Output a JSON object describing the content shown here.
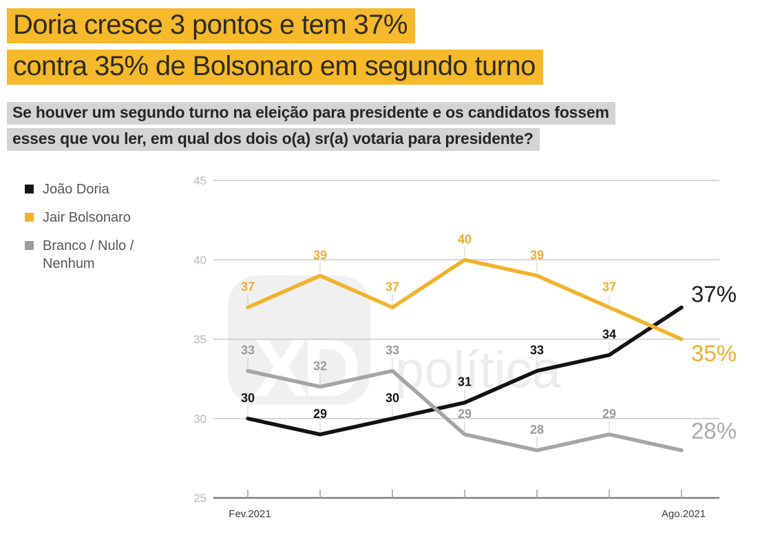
{
  "headline": {
    "line1": "Doria cresce 3 pontos e tem 37%",
    "line2": "contra 35% de Bolsonaro em segundo turno",
    "highlight_color": "#F6B92B"
  },
  "subtitle": {
    "line1": "Se houver um segundo turno na eleição para presidente e os candidatos fossem",
    "line2": "esses que vou ler, em qual dos dois o(a) sr(a) votaria para presidente?",
    "highlight_color": "#D4D4D4"
  },
  "legend": [
    {
      "label": "João Doria",
      "color": "#151515"
    },
    {
      "label": "Jair Bolsonaro",
      "color": "#F2B12B"
    },
    {
      "label": "Branco / Nulo / Nenhum",
      "color": "#9C9C9C"
    }
  ],
  "watermark": {
    "logo_text": "XD",
    "name": "política"
  },
  "chart_data": {
    "type": "line",
    "title": "Doria cresce 3 pontos e tem 37% contra 35% de Bolsonaro em segundo turno",
    "unit": "%",
    "x_labels": [
      "Fev.2021",
      "",
      "",
      "",
      "",
      "",
      "Ago.2021"
    ],
    "y_ticks": [
      25,
      30,
      35,
      40,
      45
    ],
    "ylim": [
      25,
      45
    ],
    "grid": true,
    "legend_position": "left",
    "series": [
      {
        "name": "João Doria",
        "color": "#111111",
        "label_color": "#161616",
        "values": [
          30,
          29,
          30,
          31,
          33,
          34,
          37
        ],
        "end_label": "37%",
        "end_label_color": "#1d1d1d"
      },
      {
        "name": "Jair Bolsonaro",
        "color": "#F0B32D",
        "label_color": "#EFAF2B",
        "values": [
          37,
          39,
          37,
          40,
          39,
          37,
          35
        ],
        "end_label": "35%",
        "end_label_color": "#F0B02C"
      },
      {
        "name": "Branco / Nulo / Nenhum",
        "color": "#A5A5A5",
        "label_color": "#9B9B9B",
        "values": [
          33,
          32,
          33,
          29,
          28,
          29,
          28
        ],
        "end_label": "28%",
        "end_label_color": "#ABABAB"
      }
    ]
  }
}
